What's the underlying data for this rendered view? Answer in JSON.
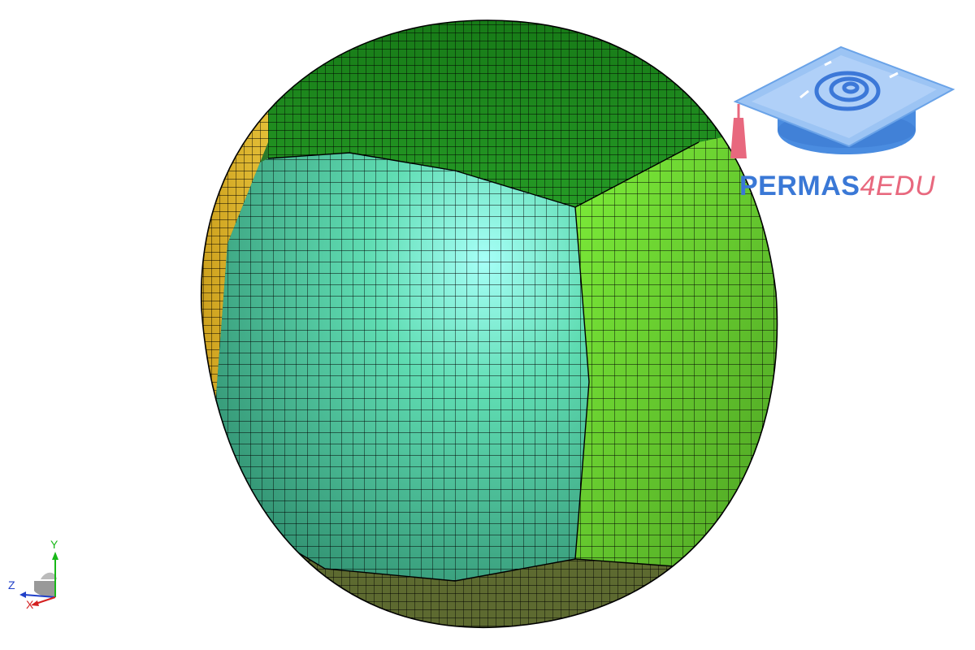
{
  "logo": {
    "brand": "PERMAS",
    "accent": "4EDU",
    "colors": {
      "brand": "#3a78d6",
      "accent": "#e8687e"
    }
  },
  "axis_triad": {
    "y_label": "Y",
    "z_label": "Z",
    "x_label": "X",
    "colors": {
      "x": "#d42020",
      "y": "#18b818",
      "z": "#2040c8"
    }
  },
  "model": {
    "patch_colors": {
      "top": "#1f8a1f",
      "front": "#4fcc96",
      "front_highlight": "#9af7f0",
      "right": "#6bd82e",
      "left": "#d8b82a",
      "bottom": "#5e6e32"
    },
    "mesh_line_color": "#000000"
  }
}
